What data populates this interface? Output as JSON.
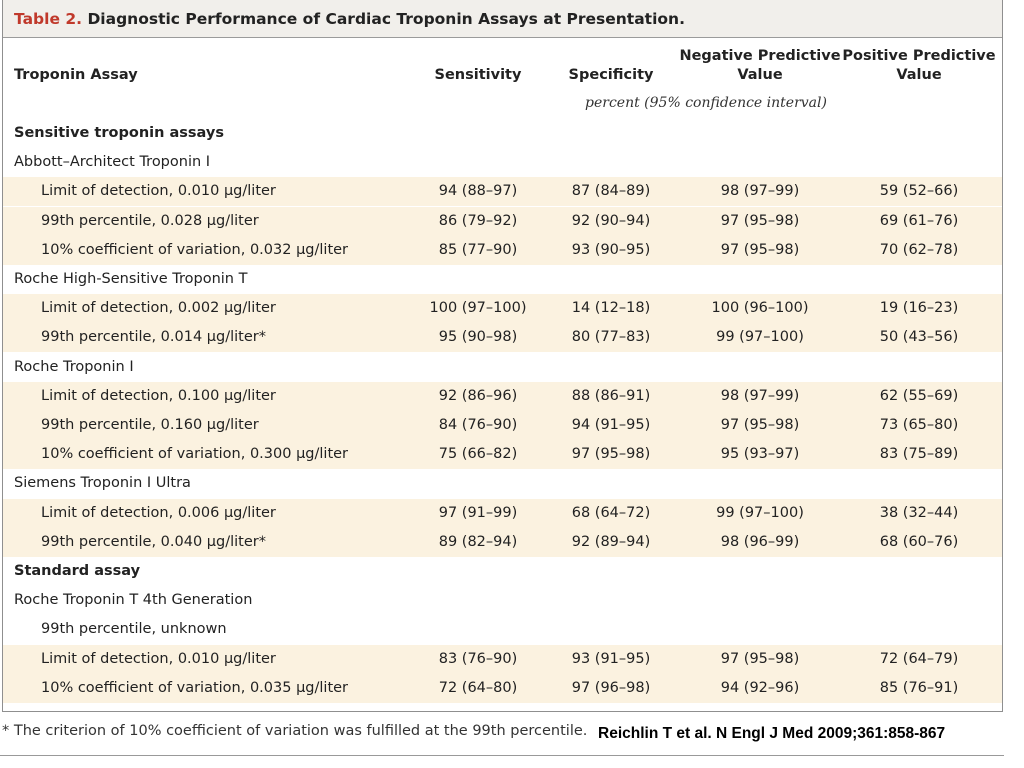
{
  "title": {
    "number": "Table 2.",
    "text": "Diagnostic Performance of Cardiac Troponin Assays at Presentation."
  },
  "headers": {
    "assay": "Troponin Assay",
    "sensitivity": "Sensitivity",
    "specificity": "Specificity",
    "npv_line1": "Negative Predictive",
    "npv_line2": "Value",
    "ppv_line1": "Positive Predictive",
    "ppv_line2": "Value",
    "units": "percent (95% confidence interval)"
  },
  "rows": [
    {
      "type": "section",
      "label": "Sensitive troponin assays"
    },
    {
      "type": "group",
      "label": "Abbott–Architect Troponin I"
    },
    {
      "type": "data",
      "label": "Limit of detection, 0.010 μg/liter",
      "sens": "94 (88–97)",
      "spec": "87 (84–89)",
      "npv": "98 (97–99)",
      "ppv": "59 (52–66)"
    },
    {
      "type": "data",
      "label": "99th percentile, 0.028 μg/liter",
      "sens": "86 (79–92)",
      "spec": "92 (90–94)",
      "npv": "97 (95–98)",
      "ppv": "69 (61–76)"
    },
    {
      "type": "data",
      "label": "10% coefficient of variation, 0.032 μg/liter",
      "sens": "85 (77–90)",
      "spec": "93 (90–95)",
      "npv": "97 (95–98)",
      "ppv": "70 (62–78)"
    },
    {
      "type": "group",
      "label": "Roche High-Sensitive Troponin T"
    },
    {
      "type": "data",
      "label": "Limit of detection, 0.002 μg/liter",
      "sens": "100 (97–100)",
      "spec": "14 (12–18)",
      "npv": "100 (96–100)",
      "ppv": "19 (16–23)"
    },
    {
      "type": "data",
      "label": "99th percentile, 0.014 μg/liter*",
      "sens": "95 (90–98)",
      "spec": "80 (77–83)",
      "npv": "99 (97–100)",
      "ppv": "50 (43–56)"
    },
    {
      "type": "group",
      "label": "Roche Troponin I"
    },
    {
      "type": "data",
      "label": "Limit of detection, 0.100 μg/liter",
      "sens": "92 (86–96)",
      "spec": "88 (86–91)",
      "npv": "98 (97–99)",
      "ppv": "62 (55–69)"
    },
    {
      "type": "data",
      "label": "99th percentile, 0.160 μg/liter",
      "sens": "84 (76–90)",
      "spec": "94 (91–95)",
      "npv": "97 (95–98)",
      "ppv": "73 (65–80)"
    },
    {
      "type": "data",
      "label": "10% coefficient of variation, 0.300 μg/liter",
      "sens": "75 (66–82)",
      "spec": "97 (95–98)",
      "npv": "95 (93–97)",
      "ppv": "83 (75–89)"
    },
    {
      "type": "group",
      "label": "Siemens Troponin I Ultra"
    },
    {
      "type": "data",
      "label": "Limit of detection, 0.006 μg/liter",
      "sens": "97 (91–99)",
      "spec": "68 (64–72)",
      "npv": "99 (97–100)",
      "ppv": "38 (32–44)"
    },
    {
      "type": "data",
      "label": "99th percentile, 0.040 μg/liter*",
      "sens": "89 (82–94)",
      "spec": "92 (89–94)",
      "npv": "98 (96–99)",
      "ppv": "68 (60–76)"
    },
    {
      "type": "section",
      "label": "Standard assay"
    },
    {
      "type": "group",
      "label": "Roche Troponin T 4th Generation"
    },
    {
      "type": "data",
      "label": "99th percentile, unknown",
      "sens": "",
      "spec": "",
      "npv": "",
      "ppv": ""
    },
    {
      "type": "data",
      "label": "Limit of detection, 0.010 μg/liter",
      "sens": "83 (76–90)",
      "spec": "93 (91–95)",
      "npv": "97 (95–98)",
      "ppv": "72 (64–79)"
    },
    {
      "type": "data",
      "label": "10% coefficient of variation, 0.035 μg/liter",
      "sens": "72 (64–80)",
      "spec": "97 (96–98)",
      "npv": "94 (92–96)",
      "ppv": "85 (76–91)"
    }
  ],
  "footnote": "* The criterion of 10% coefficient of variation was fulfilled at the 99th percentile.",
  "citation": "Reichlin T et al. N Engl J Med 2009;361:858-867",
  "colors": {
    "title_number": "#c0392b",
    "title_bg": "#f1efeb",
    "row_shade": "#fbf2e0"
  }
}
